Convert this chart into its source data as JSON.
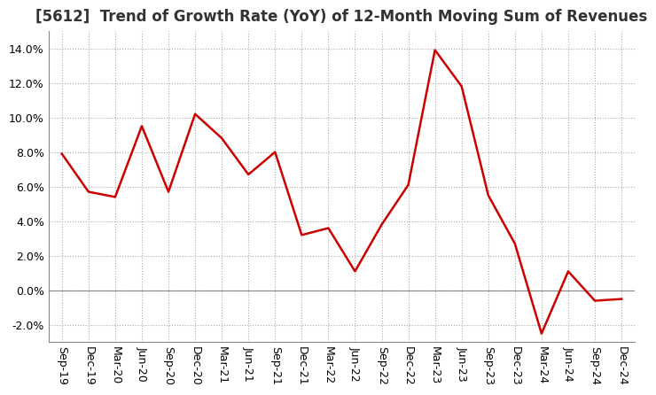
{
  "title": "[5612]  Trend of Growth Rate (YoY) of 12-Month Moving Sum of Revenues",
  "x_labels": [
    "Sep-19",
    "Dec-19",
    "Mar-20",
    "Jun-20",
    "Sep-20",
    "Dec-20",
    "Mar-21",
    "Jun-21",
    "Sep-21",
    "Dec-21",
    "Mar-22",
    "Jun-22",
    "Sep-22",
    "Dec-22",
    "Mar-23",
    "Jun-23",
    "Sep-23",
    "Dec-23",
    "Mar-24",
    "Jun-24",
    "Sep-24",
    "Dec-24"
  ],
  "y_values": [
    7.9,
    5.7,
    5.4,
    9.5,
    5.7,
    10.2,
    8.8,
    6.7,
    8.0,
    3.2,
    3.6,
    1.1,
    3.8,
    6.1,
    13.9,
    11.8,
    5.5,
    2.7,
    -2.5,
    1.1,
    -0.6,
    -0.5
  ],
  "line_color": "#CC0000",
  "background_color": "#FFFFFF",
  "plot_bg_color": "#FFFFFF",
  "ylim": [
    -3.0,
    15.0
  ],
  "yticks": [
    -2.0,
    0.0,
    2.0,
    4.0,
    6.0,
    8.0,
    10.0,
    12.0,
    14.0
  ],
  "grid_color": "#AAAAAA",
  "title_fontsize": 12,
  "tick_fontsize": 9,
  "line_width": 1.8
}
